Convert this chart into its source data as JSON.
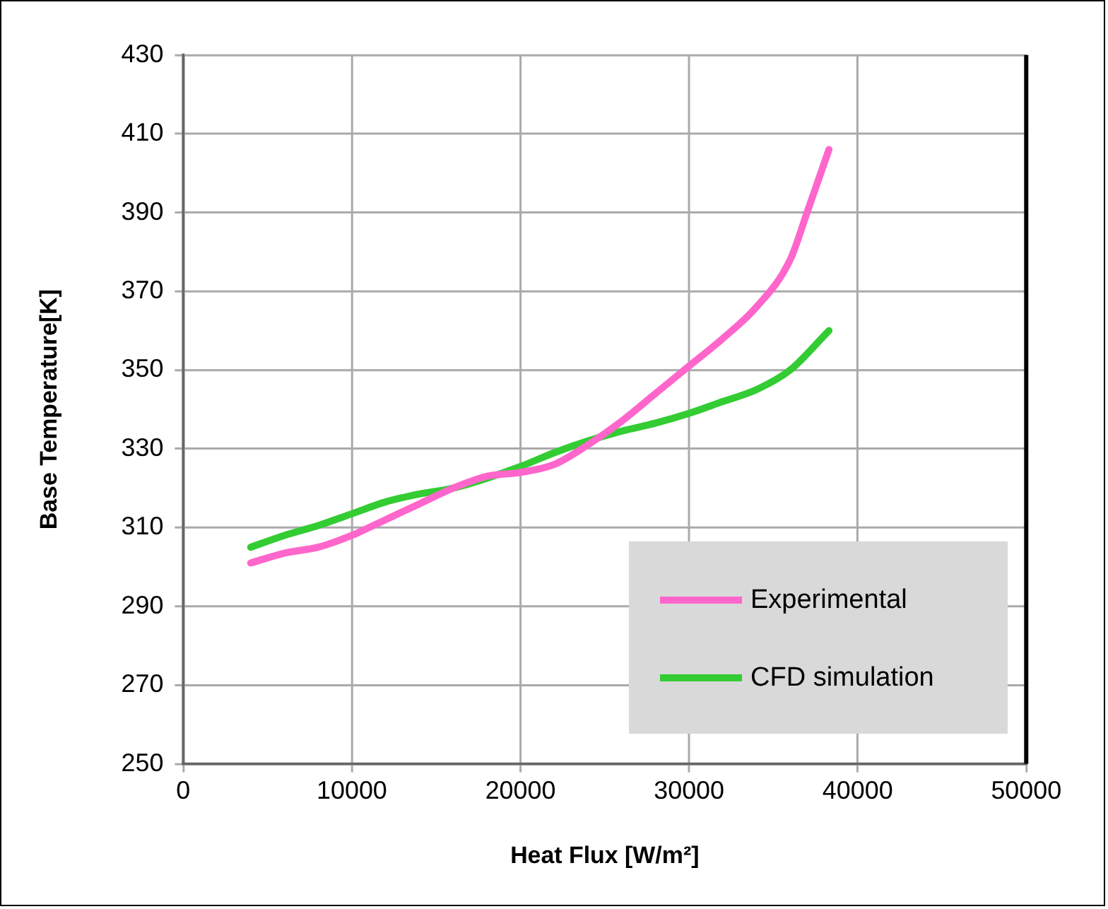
{
  "chart_data": {
    "type": "line",
    "xlabel": "Heat Flux [W/m²]",
    "ylabel": "Base Temperature[K]",
    "xlim": [
      0,
      50000
    ],
    "xticks": [
      0,
      10000,
      20000,
      30000,
      40000,
      50000
    ],
    "ylim": [
      250,
      430
    ],
    "yticks": [
      250,
      270,
      290,
      310,
      330,
      350,
      370,
      390,
      410,
      430
    ],
    "grid": true,
    "legend": "bottom right",
    "marker": "none",
    "line_style": "solid",
    "series": [
      {
        "name": "Experimental",
        "color": "#ff66cc",
        "x": [
          4000,
          6000,
          8000,
          10000,
          12000,
          14000,
          16000,
          18000,
          20000,
          22000,
          24000,
          26000,
          28000,
          30000,
          32000,
          34000,
          36000,
          37000,
          38300
        ],
        "values": [
          301,
          303.5,
          305,
          308,
          312,
          316,
          320,
          323,
          324,
          326,
          331,
          337,
          344,
          351,
          358,
          366,
          378,
          390,
          406
        ]
      },
      {
        "name": "CFD simulation",
        "color": "#33cc33",
        "x": [
          4000,
          6000,
          8000,
          10000,
          12000,
          14000,
          16000,
          18000,
          20000,
          22000,
          24000,
          26000,
          28000,
          30000,
          32000,
          34000,
          36000,
          38300
        ],
        "values": [
          305,
          308,
          310.5,
          313.5,
          316.5,
          318.5,
          320,
          322.5,
          325.5,
          329,
          332,
          334.5,
          336.5,
          339,
          342,
          345,
          350,
          360
        ]
      }
    ]
  }
}
